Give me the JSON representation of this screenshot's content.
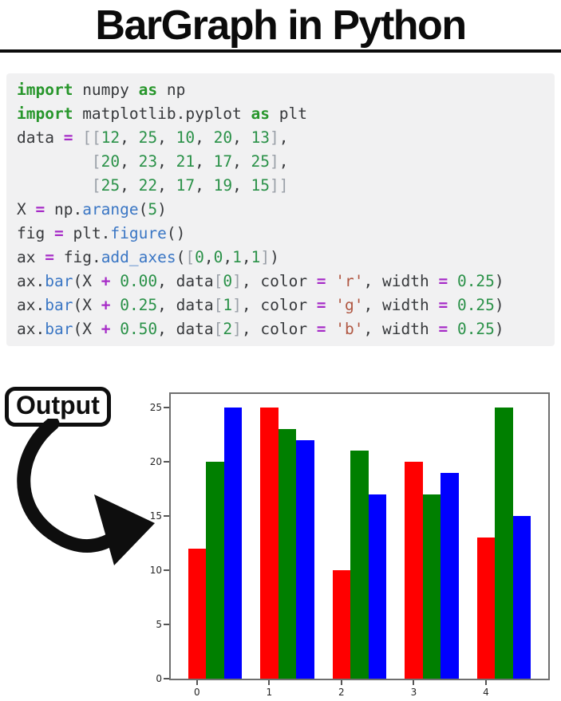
{
  "header": {
    "title": "BarGraph in Python"
  },
  "code": {
    "language": "python",
    "lines": [
      [
        [
          "k",
          "import"
        ],
        [
          "t",
          " numpy "
        ],
        [
          "k",
          "as"
        ],
        [
          "t",
          " np"
        ]
      ],
      [
        [
          "k",
          "import"
        ],
        [
          "t",
          " matplotlib.pyplot "
        ],
        [
          "k",
          "as"
        ],
        [
          "t",
          " plt"
        ]
      ],
      [
        [
          "t",
          "data "
        ],
        [
          "o",
          "="
        ],
        [
          "t",
          " "
        ],
        [
          "p",
          "[["
        ],
        [
          "n",
          "12"
        ],
        [
          "t",
          ", "
        ],
        [
          "n",
          "25"
        ],
        [
          "t",
          ", "
        ],
        [
          "n",
          "10"
        ],
        [
          "t",
          ", "
        ],
        [
          "n",
          "20"
        ],
        [
          "t",
          ", "
        ],
        [
          "n",
          "13"
        ],
        [
          "p",
          "]"
        ],
        [
          "t",
          ","
        ]
      ],
      [
        [
          "t",
          "        "
        ],
        [
          "p",
          "["
        ],
        [
          "n",
          "20"
        ],
        [
          "t",
          ", "
        ],
        [
          "n",
          "23"
        ],
        [
          "t",
          ", "
        ],
        [
          "n",
          "21"
        ],
        [
          "t",
          ", "
        ],
        [
          "n",
          "17"
        ],
        [
          "t",
          ", "
        ],
        [
          "n",
          "25"
        ],
        [
          "p",
          "]"
        ],
        [
          "t",
          ","
        ]
      ],
      [
        [
          "t",
          "        "
        ],
        [
          "p",
          "["
        ],
        [
          "n",
          "25"
        ],
        [
          "t",
          ", "
        ],
        [
          "n",
          "22"
        ],
        [
          "t",
          ", "
        ],
        [
          "n",
          "17"
        ],
        [
          "t",
          ", "
        ],
        [
          "n",
          "19"
        ],
        [
          "t",
          ", "
        ],
        [
          "n",
          "15"
        ],
        [
          "p",
          "]]"
        ]
      ],
      [
        [
          "t",
          "X "
        ],
        [
          "o",
          "="
        ],
        [
          "t",
          " np."
        ],
        [
          "f",
          "arange"
        ],
        [
          "t",
          "("
        ],
        [
          "n",
          "5"
        ],
        [
          "t",
          ")"
        ]
      ],
      [
        [
          "t",
          "fig "
        ],
        [
          "o",
          "="
        ],
        [
          "t",
          " plt."
        ],
        [
          "f",
          "figure"
        ],
        [
          "t",
          "()"
        ]
      ],
      [
        [
          "t",
          "ax "
        ],
        [
          "o",
          "="
        ],
        [
          "t",
          " fig."
        ],
        [
          "f",
          "add_axes"
        ],
        [
          "t",
          "("
        ],
        [
          "p",
          "["
        ],
        [
          "n",
          "0"
        ],
        [
          "t",
          ","
        ],
        [
          "n",
          "0"
        ],
        [
          "t",
          ","
        ],
        [
          "n",
          "1"
        ],
        [
          "t",
          ","
        ],
        [
          "n",
          "1"
        ],
        [
          "p",
          "]"
        ],
        [
          "t",
          ")"
        ]
      ],
      [
        [
          "t",
          "ax."
        ],
        [
          "f",
          "bar"
        ],
        [
          "t",
          "(X "
        ],
        [
          "o",
          "+"
        ],
        [
          "t",
          " "
        ],
        [
          "n",
          "0.00"
        ],
        [
          "t",
          ", data"
        ],
        [
          "p",
          "["
        ],
        [
          "n",
          "0"
        ],
        [
          "p",
          "]"
        ],
        [
          "t",
          ", color "
        ],
        [
          "o",
          "="
        ],
        [
          "t",
          " "
        ],
        [
          "s",
          "'r'"
        ],
        [
          "t",
          ", width "
        ],
        [
          "o",
          "="
        ],
        [
          "t",
          " "
        ],
        [
          "n",
          "0.25"
        ],
        [
          "t",
          ")"
        ]
      ],
      [
        [
          "t",
          "ax."
        ],
        [
          "f",
          "bar"
        ],
        [
          "t",
          "(X "
        ],
        [
          "o",
          "+"
        ],
        [
          "t",
          " "
        ],
        [
          "n",
          "0.25"
        ],
        [
          "t",
          ", data"
        ],
        [
          "p",
          "["
        ],
        [
          "n",
          "1"
        ],
        [
          "p",
          "]"
        ],
        [
          "t",
          ", color "
        ],
        [
          "o",
          "="
        ],
        [
          "t",
          " "
        ],
        [
          "s",
          "'g'"
        ],
        [
          "t",
          ", width "
        ],
        [
          "o",
          "="
        ],
        [
          "t",
          " "
        ],
        [
          "n",
          "0.25"
        ],
        [
          "t",
          ")"
        ]
      ],
      [
        [
          "t",
          "ax."
        ],
        [
          "f",
          "bar"
        ],
        [
          "t",
          "(X "
        ],
        [
          "o",
          "+"
        ],
        [
          "t",
          " "
        ],
        [
          "n",
          "0.50"
        ],
        [
          "t",
          ", data"
        ],
        [
          "p",
          "["
        ],
        [
          "n",
          "2"
        ],
        [
          "p",
          "]"
        ],
        [
          "t",
          ", color "
        ],
        [
          "o",
          "="
        ],
        [
          "t",
          " "
        ],
        [
          "s",
          "'b'"
        ],
        [
          "t",
          ", width "
        ],
        [
          "o",
          "="
        ],
        [
          "t",
          " "
        ],
        [
          "n",
          "0.25"
        ],
        [
          "t",
          ")"
        ]
      ]
    ]
  },
  "output": {
    "label": "Output",
    "arrow_icon": "curved-arrow-down-right"
  },
  "chart_data": {
    "type": "bar",
    "title": "",
    "xlabel": "",
    "ylabel": "",
    "x": [
      0,
      1,
      2,
      3,
      4
    ],
    "xticks": [
      "0",
      "1",
      "2",
      "3",
      "4"
    ],
    "yticks": [
      0,
      5,
      10,
      15,
      20,
      25
    ],
    "xlim": [
      -0.3625,
      4.8625
    ],
    "ylim": [
      0,
      26.25
    ],
    "bar_width": 0.25,
    "grid": false,
    "legend": "none",
    "series": [
      {
        "name": "data[0]",
        "color": "#ff0000",
        "offset": 0.0,
        "values": [
          12,
          25,
          10,
          20,
          13
        ]
      },
      {
        "name": "data[1]",
        "color": "#007f00",
        "offset": 0.25,
        "values": [
          20,
          23,
          21,
          17,
          25
        ]
      },
      {
        "name": "data[2]",
        "color": "#0000ff",
        "offset": 0.5,
        "values": [
          25,
          22,
          17,
          19,
          15
        ]
      }
    ]
  }
}
